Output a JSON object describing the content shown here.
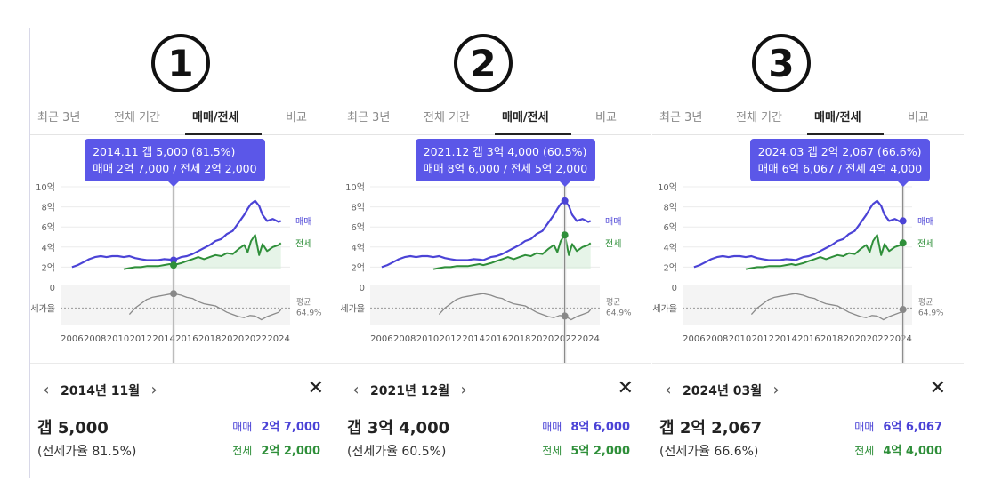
{
  "tabs": [
    "최근 3년",
    "전체 기간",
    "매매/전세",
    "비교"
  ],
  "active_tab": 2,
  "panels": [
    {
      "number": "①",
      "tooltip_line1": "2014.11  갭 5,000 (81.5%)",
      "tooltip_line2": "매매 2억 7,000 / 전세 2억 2,000",
      "marker_year": 2014.85,
      "month": "2014년 11월",
      "gap": "갭 5,000",
      "ratio": "(전세가율 81.5%)",
      "sale_label": "매매",
      "sale_value": "2억 7,000",
      "jeonse_label": "전세",
      "jeonse_value": "2억 2,000",
      "ratio_axis_label": "세가율"
    },
    {
      "number": "②",
      "tooltip_line1": "2021.12  갭 3억 4,000 (60.5%)",
      "tooltip_line2": "매매 8억 6,000 / 전세 5억 2,000",
      "marker_year": 2021.95,
      "month": "2021년 12월",
      "gap": "갭 3억 4,000",
      "ratio": "(전세가율 60.5%)",
      "sale_label": "매매",
      "sale_value": "8억 6,000",
      "jeonse_label": "전세",
      "jeonse_value": "5억 2,000",
      "ratio_axis_label": "전세가율"
    },
    {
      "number": "③",
      "tooltip_line1": "2024.03  갭 2억 2,067 (66.6%)",
      "tooltip_line2": "매매 6억 6,067 / 전세 4억 4,000",
      "marker_year": 2024.2,
      "month": "2024년 03월",
      "gap": "갭 2억 2,067",
      "ratio": "(전세가율 66.6%)",
      "sale_label": "매매",
      "sale_value": "6억 6,067",
      "jeonse_label": "전세",
      "jeonse_value": "4억 4,000",
      "ratio_axis_label": "전세가율"
    }
  ],
  "colors": {
    "sale": "#4b43d6",
    "jeonse": "#2f8f3a",
    "ratio": "#8a8a8a",
    "tooltip": "#5b57e8"
  },
  "chart_data": {
    "type": "line",
    "y_tick_labels": [
      "10억",
      "8억",
      "6억",
      "4억",
      "2억",
      "0"
    ],
    "ylim": [
      0,
      10
    ],
    "xlim": [
      2005,
      2025
    ],
    "x_tick_labels": [
      "2006",
      "2008",
      "2010",
      "2012",
      "2014",
      "2016",
      "2018",
      "2020",
      "2022",
      "2024"
    ],
    "ratio_average_label": "평균",
    "ratio_average_value": "64.9%",
    "series": [
      {
        "name": "매매",
        "x": [
          2006.0,
          2006.5,
          2007.0,
          2007.5,
          2008.0,
          2008.5,
          2009.0,
          2009.5,
          2010.0,
          2010.5,
          2011.0,
          2011.5,
          2012.0,
          2012.5,
          2013.0,
          2013.5,
          2014.0,
          2014.5,
          2014.85,
          2015.5,
          2016.0,
          2016.5,
          2017.0,
          2017.5,
          2018.0,
          2018.5,
          2019.0,
          2019.5,
          2020.0,
          2020.5,
          2021.0,
          2021.3,
          2021.6,
          2021.95,
          2022.3,
          2022.6,
          2023.0,
          2023.5,
          2024.0,
          2024.2
        ],
        "values": [
          2.0,
          2.2,
          2.5,
          2.8,
          3.0,
          3.1,
          3.0,
          3.1,
          3.1,
          3.0,
          3.1,
          2.9,
          2.8,
          2.7,
          2.7,
          2.7,
          2.8,
          2.75,
          2.7,
          3.0,
          3.1,
          3.3,
          3.6,
          3.9,
          4.2,
          4.6,
          4.8,
          5.3,
          5.6,
          6.4,
          7.2,
          7.8,
          8.3,
          8.6,
          8.1,
          7.2,
          6.6,
          6.8,
          6.5,
          6.6
        ]
      },
      {
        "name": "전세",
        "x": [
          2010.5,
          2011.0,
          2011.5,
          2012.0,
          2012.5,
          2013.0,
          2013.5,
          2014.0,
          2014.5,
          2014.85,
          2015.5,
          2016.0,
          2016.5,
          2017.0,
          2017.5,
          2018.0,
          2018.5,
          2019.0,
          2019.5,
          2020.0,
          2020.5,
          2021.0,
          2021.3,
          2021.6,
          2021.95,
          2022.3,
          2022.6,
          2023.0,
          2023.5,
          2024.0,
          2024.2
        ],
        "values": [
          1.8,
          1.9,
          2.0,
          2.0,
          2.1,
          2.1,
          2.1,
          2.2,
          2.3,
          2.2,
          2.4,
          2.6,
          2.8,
          3.0,
          2.8,
          3.0,
          3.2,
          3.1,
          3.4,
          3.3,
          3.8,
          4.2,
          3.5,
          4.6,
          5.2,
          3.2,
          4.3,
          3.6,
          4.0,
          4.2,
          4.4
        ]
      },
      {
        "name": "전세가율",
        "x": [
          2011.0,
          2011.5,
          2012.0,
          2012.5,
          2013.0,
          2013.5,
          2014.0,
          2014.5,
          2014.85,
          2015.5,
          2016.0,
          2016.5,
          2017.0,
          2017.5,
          2018.0,
          2018.5,
          2019.0,
          2019.5,
          2020.0,
          2020.5,
          2021.0,
          2021.5,
          2021.95,
          2022.5,
          2023.0,
          2023.5,
          2024.0,
          2024.2
        ],
        "values": [
          62,
          68,
          72,
          76,
          78,
          79,
          80,
          81,
          81.5,
          80,
          78,
          77,
          74,
          72,
          71,
          70,
          67,
          64,
          62,
          60,
          59,
          61,
          60.5,
          57,
          60,
          62,
          64,
          66.6
        ]
      }
    ]
  }
}
